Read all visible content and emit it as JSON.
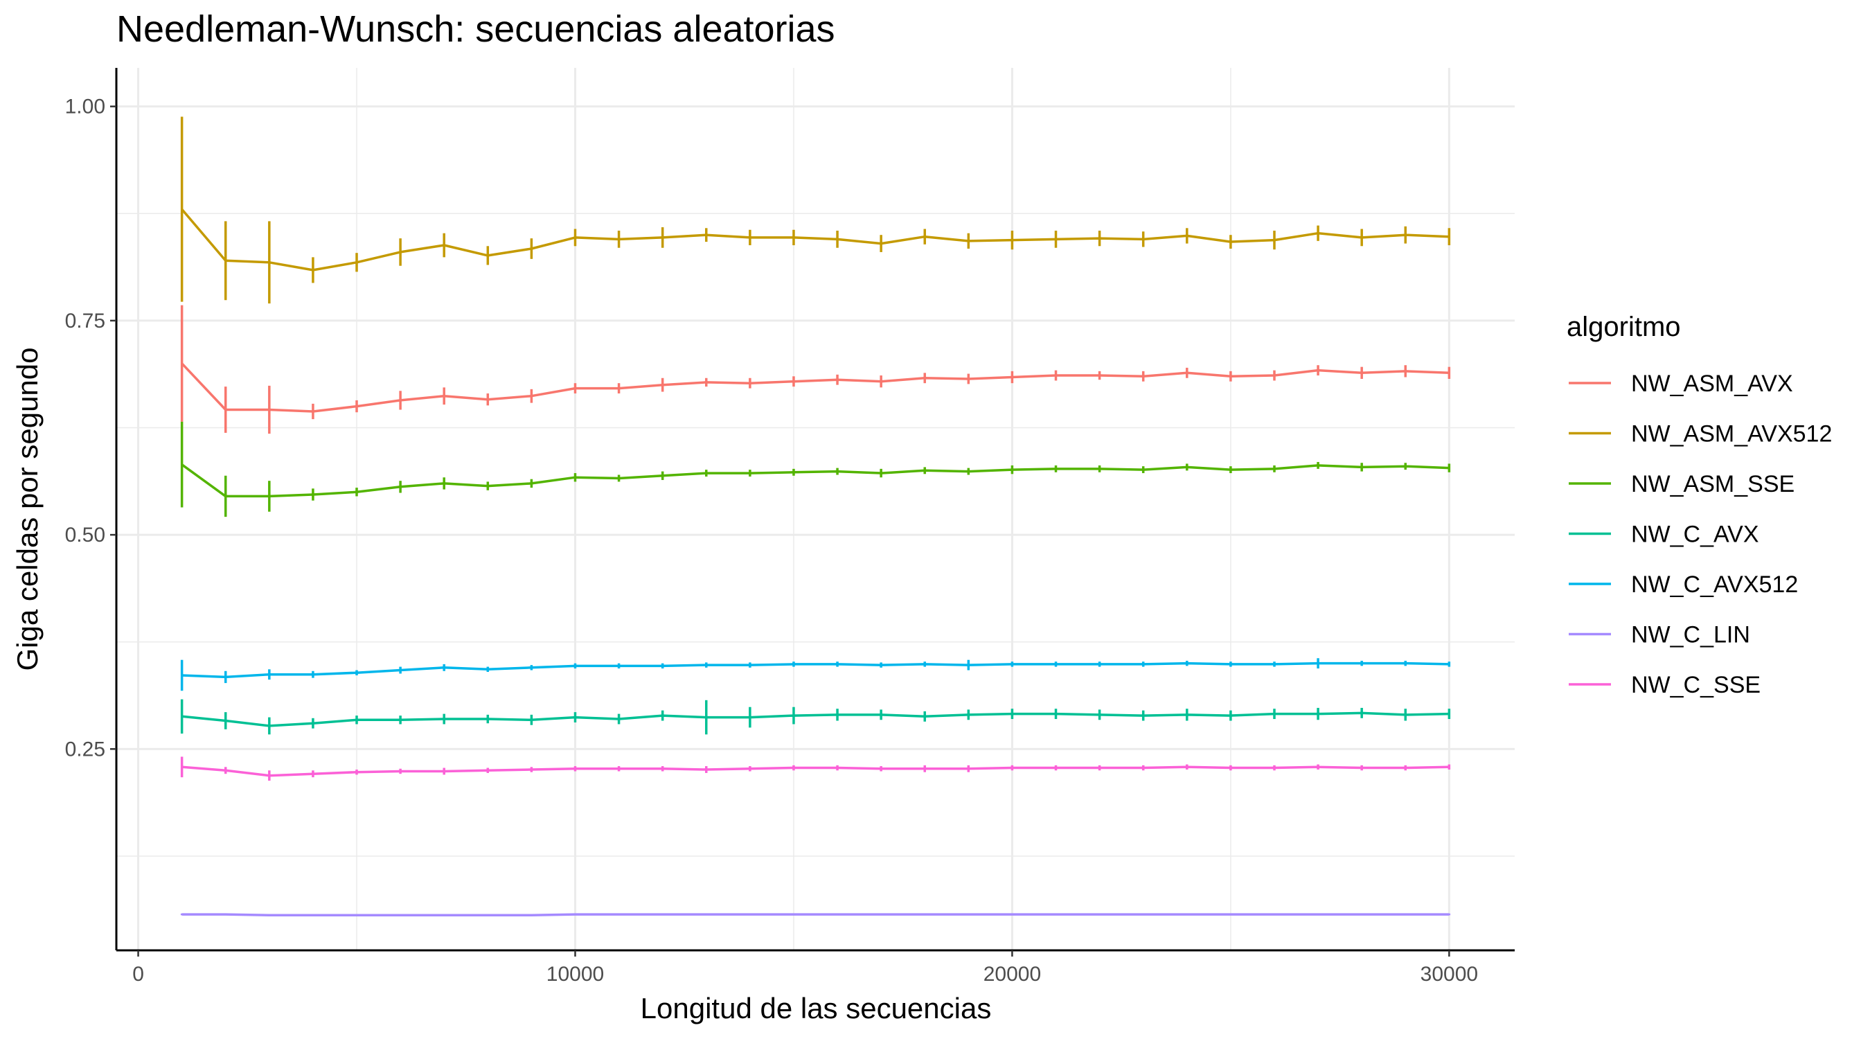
{
  "chart_data": {
    "type": "line",
    "title": "Needleman-Wunsch: secuencias aleatorias",
    "xlabel": "Longitud de las secuencias",
    "ylabel": "Giga celdas por segundo",
    "xlim": [
      -500,
      31500
    ],
    "ylim": [
      0.015,
      1.045
    ],
    "x_ticks": [
      0,
      10000,
      20000,
      30000
    ],
    "x_tick_labels": [
      "0",
      "10000",
      "20000",
      "30000"
    ],
    "x_minor_ticks": [
      5000,
      15000,
      25000
    ],
    "y_ticks": [
      0.25,
      0.5,
      0.75,
      1.0
    ],
    "y_tick_labels": [
      "0.25",
      "0.50",
      "0.75",
      "1.00"
    ],
    "y_minor_ticks": [
      0.125,
      0.375,
      0.625,
      0.875
    ],
    "grid": true,
    "legend_title": "algoritmo",
    "legend_position": "right",
    "x": [
      1000,
      2000,
      3000,
      4000,
      5000,
      6000,
      7000,
      8000,
      9000,
      10000,
      11000,
      12000,
      13000,
      14000,
      15000,
      16000,
      17000,
      18000,
      19000,
      20000,
      21000,
      22000,
      23000,
      24000,
      25000,
      26000,
      27000,
      28000,
      29000,
      30000
    ],
    "series": [
      {
        "name": "NW_ASM_AVX",
        "color": "#F8766D",
        "values": [
          0.7,
          0.646,
          0.646,
          0.644,
          0.65,
          0.657,
          0.662,
          0.658,
          0.662,
          0.671,
          0.671,
          0.675,
          0.678,
          0.677,
          0.679,
          0.681,
          0.679,
          0.683,
          0.682,
          0.684,
          0.686,
          0.686,
          0.685,
          0.689,
          0.685,
          0.686,
          0.692,
          0.689,
          0.691,
          0.689
        ],
        "err": [
          0.068,
          0.027,
          0.028,
          0.009,
          0.007,
          0.011,
          0.01,
          0.007,
          0.008,
          0.006,
          0.006,
          0.008,
          0.005,
          0.006,
          0.006,
          0.006,
          0.007,
          0.006,
          0.006,
          0.007,
          0.006,
          0.005,
          0.006,
          0.006,
          0.006,
          0.006,
          0.006,
          0.007,
          0.007,
          0.007
        ]
      },
      {
        "name": "NW_ASM_AVX512",
        "color": "#C49A00",
        "values": [
          0.88,
          0.82,
          0.818,
          0.809,
          0.818,
          0.83,
          0.838,
          0.826,
          0.834,
          0.847,
          0.845,
          0.847,
          0.85,
          0.847,
          0.847,
          0.845,
          0.84,
          0.848,
          0.843,
          0.844,
          0.845,
          0.846,
          0.845,
          0.849,
          0.842,
          0.844,
          0.852,
          0.847,
          0.85,
          0.848
        ],
        "err": [
          0.108,
          0.046,
          0.048,
          0.015,
          0.011,
          0.016,
          0.014,
          0.011,
          0.012,
          0.01,
          0.01,
          0.012,
          0.008,
          0.009,
          0.009,
          0.01,
          0.01,
          0.009,
          0.009,
          0.011,
          0.01,
          0.009,
          0.009,
          0.009,
          0.008,
          0.011,
          0.009,
          0.01,
          0.01,
          0.01
        ]
      },
      {
        "name": "NW_ASM_SSE",
        "color": "#53B400",
        "values": [
          0.582,
          0.545,
          0.545,
          0.547,
          0.55,
          0.556,
          0.56,
          0.557,
          0.56,
          0.567,
          0.566,
          0.569,
          0.572,
          0.572,
          0.573,
          0.574,
          0.572,
          0.575,
          0.574,
          0.576,
          0.577,
          0.577,
          0.576,
          0.579,
          0.576,
          0.577,
          0.581,
          0.579,
          0.58,
          0.578
        ],
        "err": [
          0.05,
          0.024,
          0.018,
          0.007,
          0.005,
          0.007,
          0.007,
          0.005,
          0.005,
          0.005,
          0.004,
          0.005,
          0.004,
          0.004,
          0.004,
          0.004,
          0.005,
          0.004,
          0.004,
          0.005,
          0.004,
          0.004,
          0.004,
          0.004,
          0.004,
          0.004,
          0.004,
          0.005,
          0.004,
          0.005
        ]
      },
      {
        "name": "NW_C_AVX",
        "color": "#00C094",
        "values": [
          0.288,
          0.283,
          0.277,
          0.28,
          0.284,
          0.284,
          0.285,
          0.285,
          0.284,
          0.287,
          0.285,
          0.289,
          0.287,
          0.287,
          0.289,
          0.29,
          0.29,
          0.288,
          0.29,
          0.291,
          0.291,
          0.29,
          0.289,
          0.29,
          0.289,
          0.291,
          0.291,
          0.292,
          0.29,
          0.291
        ],
        "err": [
          0.02,
          0.01,
          0.01,
          0.006,
          0.005,
          0.005,
          0.006,
          0.005,
          0.006,
          0.006,
          0.006,
          0.006,
          0.02,
          0.012,
          0.01,
          0.007,
          0.006,
          0.006,
          0.006,
          0.006,
          0.006,
          0.006,
          0.006,
          0.007,
          0.006,
          0.006,
          0.007,
          0.006,
          0.007,
          0.006
        ]
      },
      {
        "name": "NW_C_AVX512",
        "color": "#00B6EB",
        "values": [
          0.336,
          0.334,
          0.337,
          0.337,
          0.339,
          0.342,
          0.345,
          0.343,
          0.345,
          0.347,
          0.347,
          0.347,
          0.348,
          0.348,
          0.349,
          0.349,
          0.348,
          0.349,
          0.348,
          0.349,
          0.349,
          0.349,
          0.349,
          0.35,
          0.349,
          0.349,
          0.35,
          0.35,
          0.35,
          0.349
        ],
        "err": [
          0.018,
          0.007,
          0.006,
          0.004,
          0.003,
          0.004,
          0.004,
          0.003,
          0.003,
          0.003,
          0.003,
          0.003,
          0.003,
          0.003,
          0.003,
          0.003,
          0.003,
          0.003,
          0.006,
          0.003,
          0.003,
          0.003,
          0.003,
          0.003,
          0.003,
          0.003,
          0.006,
          0.003,
          0.003,
          0.003
        ]
      },
      {
        "name": "NW_C_LIN",
        "color": "#A58AFF",
        "values": [
          0.057,
          0.057,
          0.056,
          0.056,
          0.056,
          0.056,
          0.056,
          0.056,
          0.056,
          0.057,
          0.057,
          0.057,
          0.057,
          0.057,
          0.057,
          0.057,
          0.057,
          0.057,
          0.057,
          0.057,
          0.057,
          0.057,
          0.057,
          0.057,
          0.057,
          0.057,
          0.057,
          0.057,
          0.057,
          0.057
        ],
        "err": [
          0.001,
          0.001,
          0.001,
          0.001,
          0.001,
          0.001,
          0.001,
          0.001,
          0.001,
          0.001,
          0.001,
          0.001,
          0.001,
          0.001,
          0.001,
          0.001,
          0.001,
          0.001,
          0.001,
          0.001,
          0.001,
          0.001,
          0.001,
          0.001,
          0.001,
          0.001,
          0.001,
          0.001,
          0.001,
          0.001
        ]
      },
      {
        "name": "NW_C_SSE",
        "color": "#FB61D7",
        "values": [
          0.229,
          0.225,
          0.219,
          0.221,
          0.223,
          0.224,
          0.224,
          0.225,
          0.226,
          0.227,
          0.227,
          0.227,
          0.226,
          0.227,
          0.228,
          0.228,
          0.227,
          0.227,
          0.227,
          0.228,
          0.228,
          0.228,
          0.228,
          0.229,
          0.228,
          0.228,
          0.229,
          0.228,
          0.228,
          0.229
        ],
        "err": [
          0.012,
          0.004,
          0.006,
          0.004,
          0.003,
          0.003,
          0.004,
          0.003,
          0.003,
          0.003,
          0.003,
          0.003,
          0.004,
          0.003,
          0.003,
          0.003,
          0.003,
          0.004,
          0.004,
          0.003,
          0.003,
          0.003,
          0.003,
          0.003,
          0.003,
          0.003,
          0.003,
          0.003,
          0.003,
          0.003
        ]
      }
    ]
  }
}
